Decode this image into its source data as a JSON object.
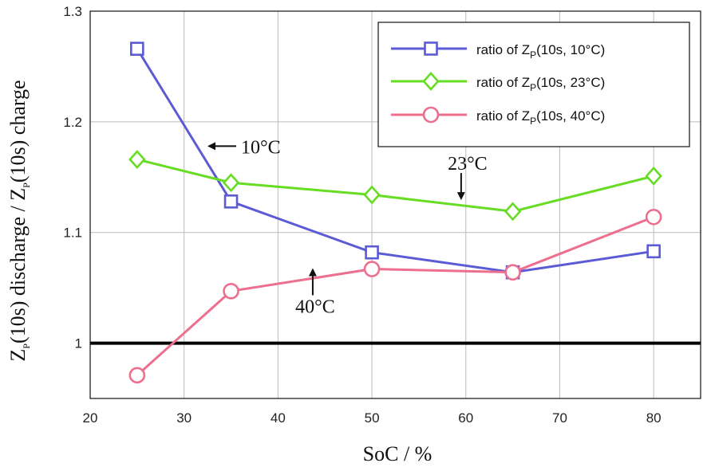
{
  "chart_data": {
    "type": "line",
    "xlabel": "SoC / %",
    "ylabel_parts": [
      "Z",
      "P",
      "(10s) discharge / Z",
      "P",
      "(10s) charge"
    ],
    "xlim": [
      20,
      85
    ],
    "ylim": [
      0.95,
      1.3
    ],
    "xticks": [
      20,
      30,
      40,
      50,
      60,
      70,
      80
    ],
    "yticks": [
      {
        "value": 1.0,
        "label": "1"
      },
      {
        "value": 1.1,
        "label": "1.1"
      },
      {
        "value": 1.2,
        "label": "1.2"
      },
      {
        "value": 1.3,
        "label": "1.3"
      }
    ],
    "grid": true,
    "legend_position": "top-right",
    "reference_line": {
      "y": 1.0,
      "color": "#000000"
    },
    "x": [
      25,
      35,
      50,
      65,
      80
    ],
    "series": [
      {
        "name_parts": [
          "ratio of Z",
          "P",
          "(10s, 10°C)"
        ],
        "values": [
          1.266,
          1.128,
          1.082,
          1.064,
          1.083
        ],
        "color": "#5b5bd6",
        "marker": "square"
      },
      {
        "name_parts": [
          "ratio of Z",
          "P",
          "(10s, 23°C)"
        ],
        "values": [
          1.166,
          1.145,
          1.134,
          1.119,
          1.151
        ],
        "color": "#66dd22",
        "marker": "diamond"
      },
      {
        "name_parts": [
          "ratio of Z",
          "P",
          "(10s, 40°C)"
        ],
        "values": [
          0.971,
          1.047,
          1.067,
          1.064,
          1.114
        ],
        "color": "#ee6e8e",
        "marker": "circle"
      }
    ],
    "annotations": [
      {
        "text": "10°C",
        "arrow": "left",
        "x": 33,
        "y": 1.178
      },
      {
        "text": "23°C",
        "arrow": "down",
        "x": 59.5,
        "y": 1.135
      },
      {
        "text": "40°C",
        "arrow": "up",
        "x": 43.7,
        "y": 1.062
      }
    ]
  }
}
